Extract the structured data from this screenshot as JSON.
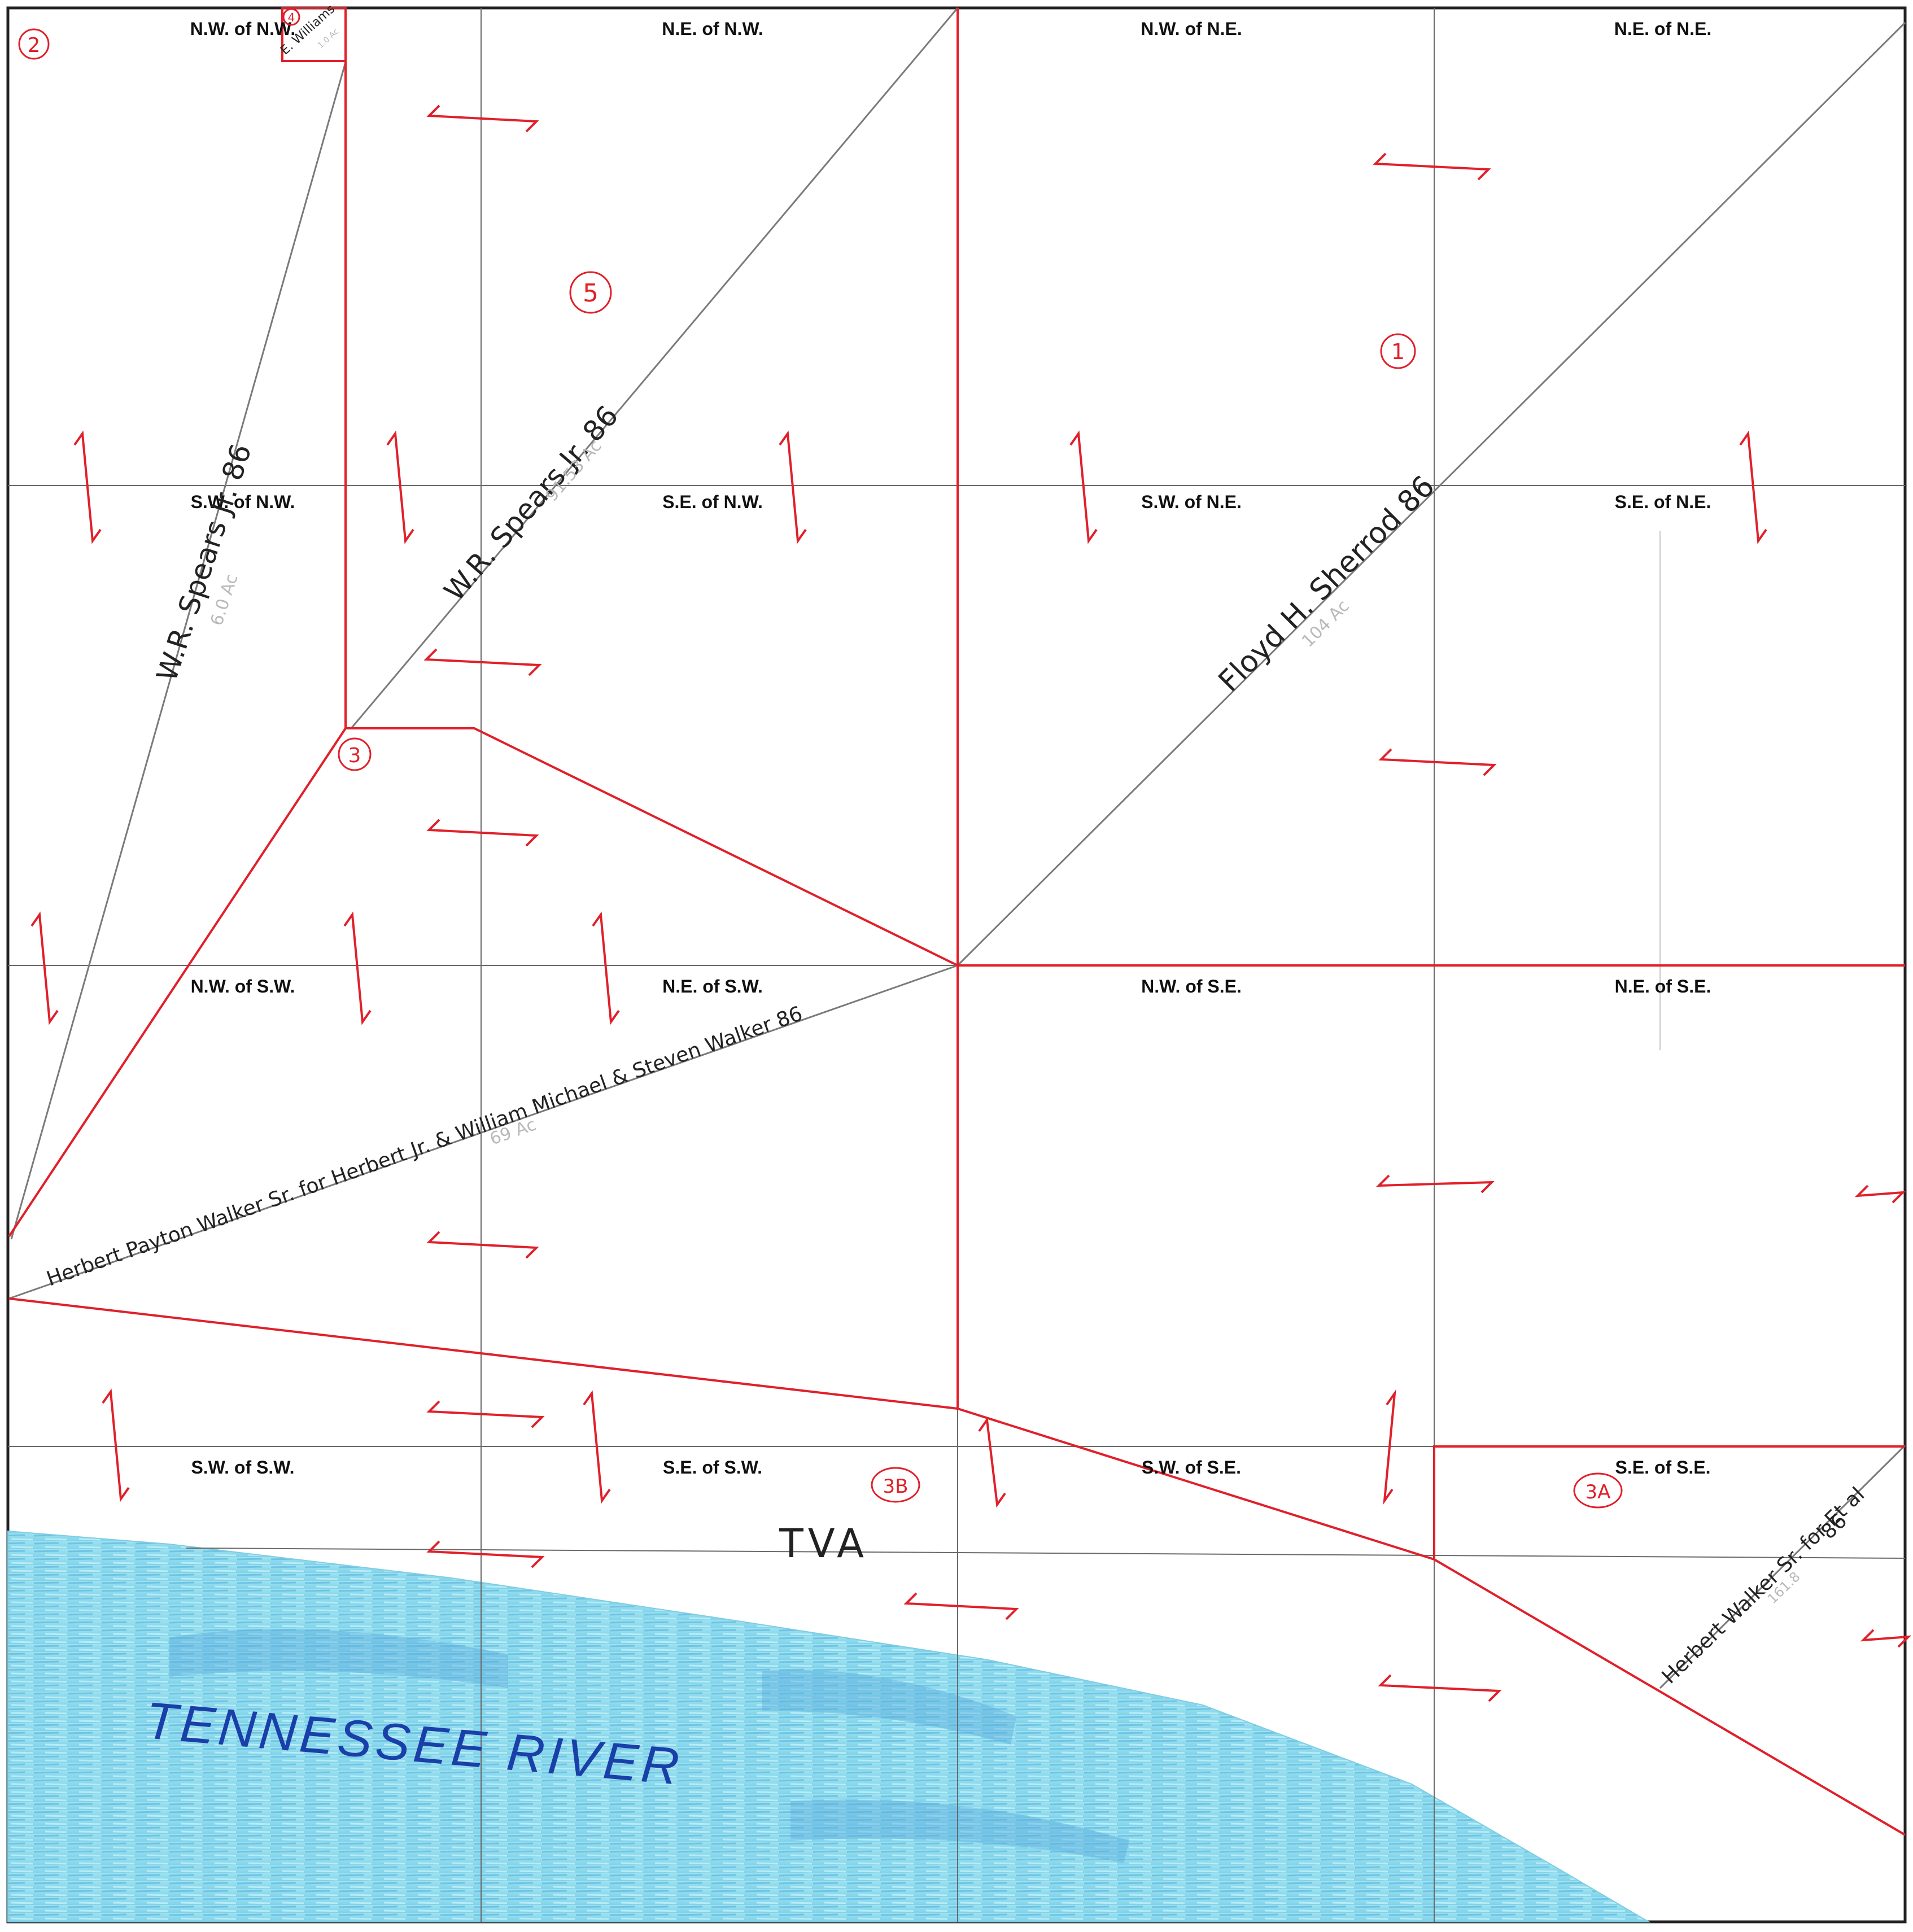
{
  "colors": {
    "boundary": "#e0202a",
    "grid": "#6a6a6a",
    "water": "#8fdcec",
    "water_dark": "#4a9ad6",
    "ink": "#222222",
    "river_label": "#1a3fa8"
  },
  "quarters": [
    "N.W. of N.W.",
    "N.E. of N.W.",
    "N.W. of N.E.",
    "N.E. of N.E.",
    "S.W. of N.W.",
    "S.E. of N.W.",
    "S.W. of N.E.",
    "S.E. of N.E.",
    "N.W. of S.W.",
    "N.E. of S.W.",
    "N.W. of S.E.",
    "N.E. of S.E.",
    "S.W. of S.W.",
    "S.E. of S.W.",
    "S.W. of S.E.",
    "S.E. of S.E."
  ],
  "lot_numbers": [
    "2",
    "4",
    "5",
    "1",
    "3",
    "3B",
    "3A"
  ],
  "owners": {
    "williams": "E. Williams",
    "spears_west": "W.R. Spears Jr. 86",
    "spears_center": "W.R. Spears Jr. 86",
    "sherrod": "Floyd H. Sherrod 86",
    "walker_long": "Herbert Payton Walker Sr. for Herbert Jr. & William Michael & Steven Walker 86",
    "walker_se_line1": "Herbert Walker Sr. for Et al",
    "walker_se_line2": "86"
  },
  "acreage_notes": {
    "williams": "1.0 Ac",
    "spears_west": "6.0 Ac",
    "spears_center": "91.53 Ac",
    "sherrod": "104 Ac",
    "walker_long": "69 Ac",
    "walker_se": "161.8"
  },
  "features": {
    "tva": "TVA",
    "river": "TENNESSEE RIVER"
  }
}
